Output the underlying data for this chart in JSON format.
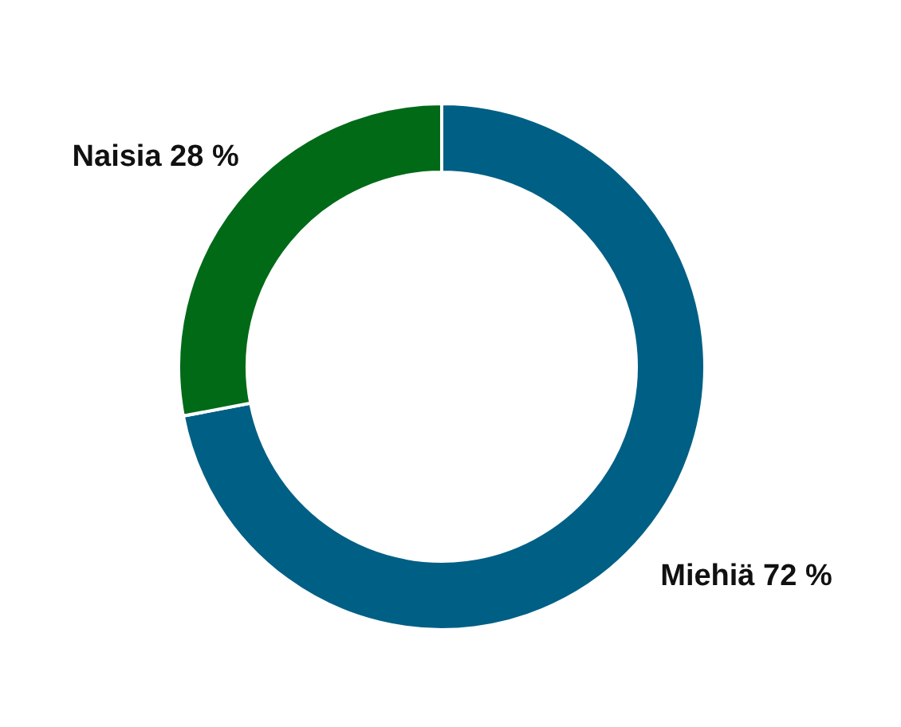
{
  "chart_data": {
    "type": "donut",
    "categories": [
      "Miehiä",
      "Naisia"
    ],
    "values": [
      72,
      28
    ],
    "colors": [
      "#005f85",
      "#006a17"
    ],
    "value_labels": [
      "72 %",
      "28 %"
    ]
  }
}
